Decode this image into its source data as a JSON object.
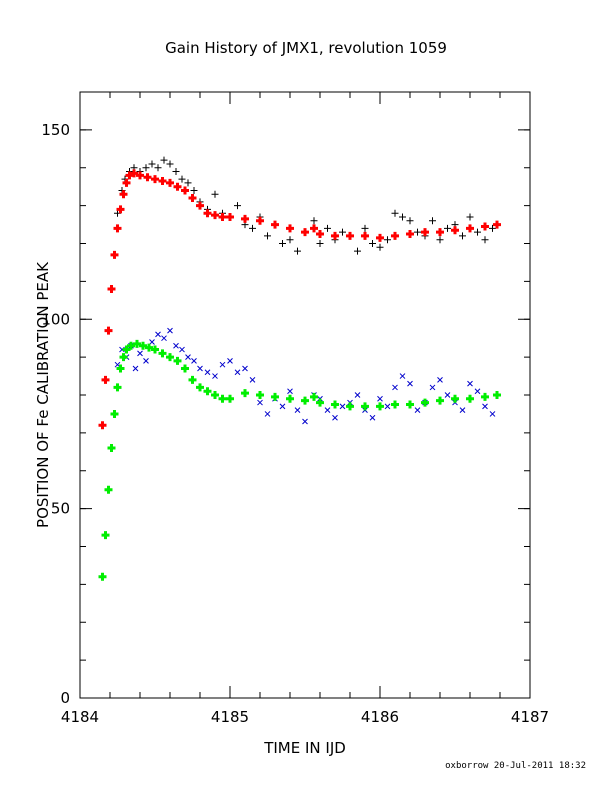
{
  "chart_data": {
    "type": "scatter",
    "title": "Gain History of JMX1, revolution 1059",
    "xlabel": "TIME IN IJD",
    "ylabel": "POSITION OF Fe CALIBRATION PEAK",
    "xlim": [
      4184,
      4187
    ],
    "ylim": [
      0,
      160
    ],
    "x_ticks": [
      4184,
      4185,
      4186,
      4187
    ],
    "y_ticks": [
      0,
      50,
      100,
      150
    ],
    "x_tick_labels": [
      "4184",
      "4185",
      "4186",
      "4187"
    ],
    "y_tick_labels": [
      "0",
      "50",
      "100",
      "150"
    ],
    "grid": false,
    "series": [
      {
        "role": "upper-raw",
        "marker": "plus",
        "color": "#000000",
        "x": [
          4184.25,
          4184.28,
          4184.3,
          4184.33,
          4184.36,
          4184.4,
          4184.44,
          4184.48,
          4184.52,
          4184.56,
          4184.6,
          4184.64,
          4184.68,
          4184.72,
          4184.76,
          4184.8,
          4184.85,
          4184.9,
          4184.95,
          4185.0,
          4185.05,
          4185.1,
          4185.15,
          4185.2,
          4185.25,
          4185.3,
          4185.35,
          4185.4,
          4185.45,
          4185.5,
          4185.56,
          4185.6,
          4185.65,
          4185.7,
          4185.75,
          4185.8,
          4185.85,
          4185.9,
          4185.95,
          4186.0,
          4186.05,
          4186.1,
          4186.15,
          4186.2,
          4186.25,
          4186.3,
          4186.35,
          4186.4,
          4186.45,
          4186.5,
          4186.55,
          4186.6,
          4186.65,
          4186.7,
          4186.75
        ],
        "y": [
          128,
          134,
          137,
          139,
          140,
          139,
          140,
          141,
          140,
          142,
          141,
          139,
          137,
          136,
          134,
          131,
          129,
          133,
          128,
          127,
          130,
          125,
          124,
          127,
          122,
          125,
          120,
          121,
          118,
          123,
          126,
          120,
          124,
          121,
          123,
          122,
          118,
          124,
          120,
          119,
          121,
          128,
          127,
          126,
          123,
          122,
          126,
          121,
          124,
          125,
          122,
          127,
          123,
          121,
          124
        ]
      },
      {
        "role": "upper-fit",
        "marker": "plus-dense",
        "color": "#ff0000",
        "x": [
          4184.15,
          4184.17,
          4184.19,
          4184.21,
          4184.23,
          4184.25,
          4184.27,
          4184.29,
          4184.31,
          4184.33,
          4184.36,
          4184.4,
          4184.45,
          4184.5,
          4184.55,
          4184.6,
          4184.65,
          4184.7,
          4184.75,
          4184.8,
          4184.85,
          4184.9,
          4184.95,
          4185.0,
          4185.1,
          4185.2,
          4185.3,
          4185.4,
          4185.5,
          4185.56,
          4185.6,
          4185.7,
          4185.8,
          4185.9,
          4186.0,
          4186.1,
          4186.2,
          4186.3,
          4186.4,
          4186.5,
          4186.6,
          4186.7,
          4186.78
        ],
        "y": [
          72,
          84,
          97,
          108,
          117,
          124,
          129,
          133,
          136,
          138,
          138.5,
          138,
          137.5,
          137,
          136.5,
          136,
          135,
          134,
          132,
          130,
          128,
          127.5,
          127,
          127,
          126.5,
          126,
          125,
          124,
          123,
          124,
          122.5,
          122,
          122,
          122,
          121.5,
          122,
          122.5,
          123,
          123,
          123.5,
          124,
          124.5,
          125
        ]
      },
      {
        "role": "lower-raw",
        "marker": "cross",
        "color": "#0000cc",
        "x": [
          4184.25,
          4184.28,
          4184.31,
          4184.34,
          4184.37,
          4184.4,
          4184.44,
          4184.48,
          4184.52,
          4184.56,
          4184.6,
          4184.64,
          4184.68,
          4184.72,
          4184.76,
          4184.8,
          4184.85,
          4184.9,
          4184.95,
          4185.0,
          4185.05,
          4185.1,
          4185.15,
          4185.2,
          4185.25,
          4185.3,
          4185.35,
          4185.4,
          4185.45,
          4185.5,
          4185.56,
          4185.6,
          4185.65,
          4185.7,
          4185.75,
          4185.8,
          4185.85,
          4185.9,
          4185.95,
          4186.0,
          4186.05,
          4186.1,
          4186.15,
          4186.2,
          4186.25,
          4186.3,
          4186.35,
          4186.4,
          4186.45,
          4186.5,
          4186.55,
          4186.6,
          4186.65,
          4186.7,
          4186.75
        ],
        "y": [
          88,
          92,
          90,
          93,
          87,
          91,
          89,
          94,
          96,
          95,
          97,
          93,
          92,
          90,
          89,
          87,
          86,
          85,
          88,
          89,
          86,
          87,
          84,
          78,
          75,
          79,
          77,
          81,
          76,
          73,
          80,
          79,
          76,
          74,
          77,
          78,
          80,
          76,
          74,
          79,
          77,
          82,
          85,
          83,
          76,
          78,
          82,
          84,
          80,
          78,
          76,
          83,
          81,
          77,
          75
        ]
      },
      {
        "role": "lower-fit",
        "marker": "plus-dense",
        "color": "#00ee00",
        "x": [
          4184.15,
          4184.17,
          4184.19,
          4184.21,
          4184.23,
          4184.25,
          4184.27,
          4184.29,
          4184.31,
          4184.34,
          4184.38,
          4184.42,
          4184.46,
          4184.5,
          4184.55,
          4184.6,
          4184.65,
          4184.7,
          4184.75,
          4184.8,
          4184.85,
          4184.9,
          4184.95,
          4185.0,
          4185.1,
          4185.2,
          4185.3,
          4185.4,
          4185.5,
          4185.56,
          4185.6,
          4185.7,
          4185.8,
          4185.9,
          4186.0,
          4186.1,
          4186.2,
          4186.3,
          4186.4,
          4186.5,
          4186.6,
          4186.7,
          4186.78
        ],
        "y": [
          32,
          43,
          55,
          66,
          75,
          82,
          87,
          90,
          92,
          93,
          93.5,
          93,
          92.5,
          92,
          91,
          90,
          89,
          87,
          84,
          82,
          81,
          80,
          79,
          79,
          80.5,
          80,
          79.5,
          79,
          78.5,
          79.5,
          78,
          77.5,
          77,
          77,
          77,
          77.5,
          77.5,
          78,
          78.5,
          79,
          79,
          79.5,
          80
        ]
      }
    ]
  },
  "footer": {
    "stamp": "oxborrow 20-Jul-2011 18:32"
  }
}
